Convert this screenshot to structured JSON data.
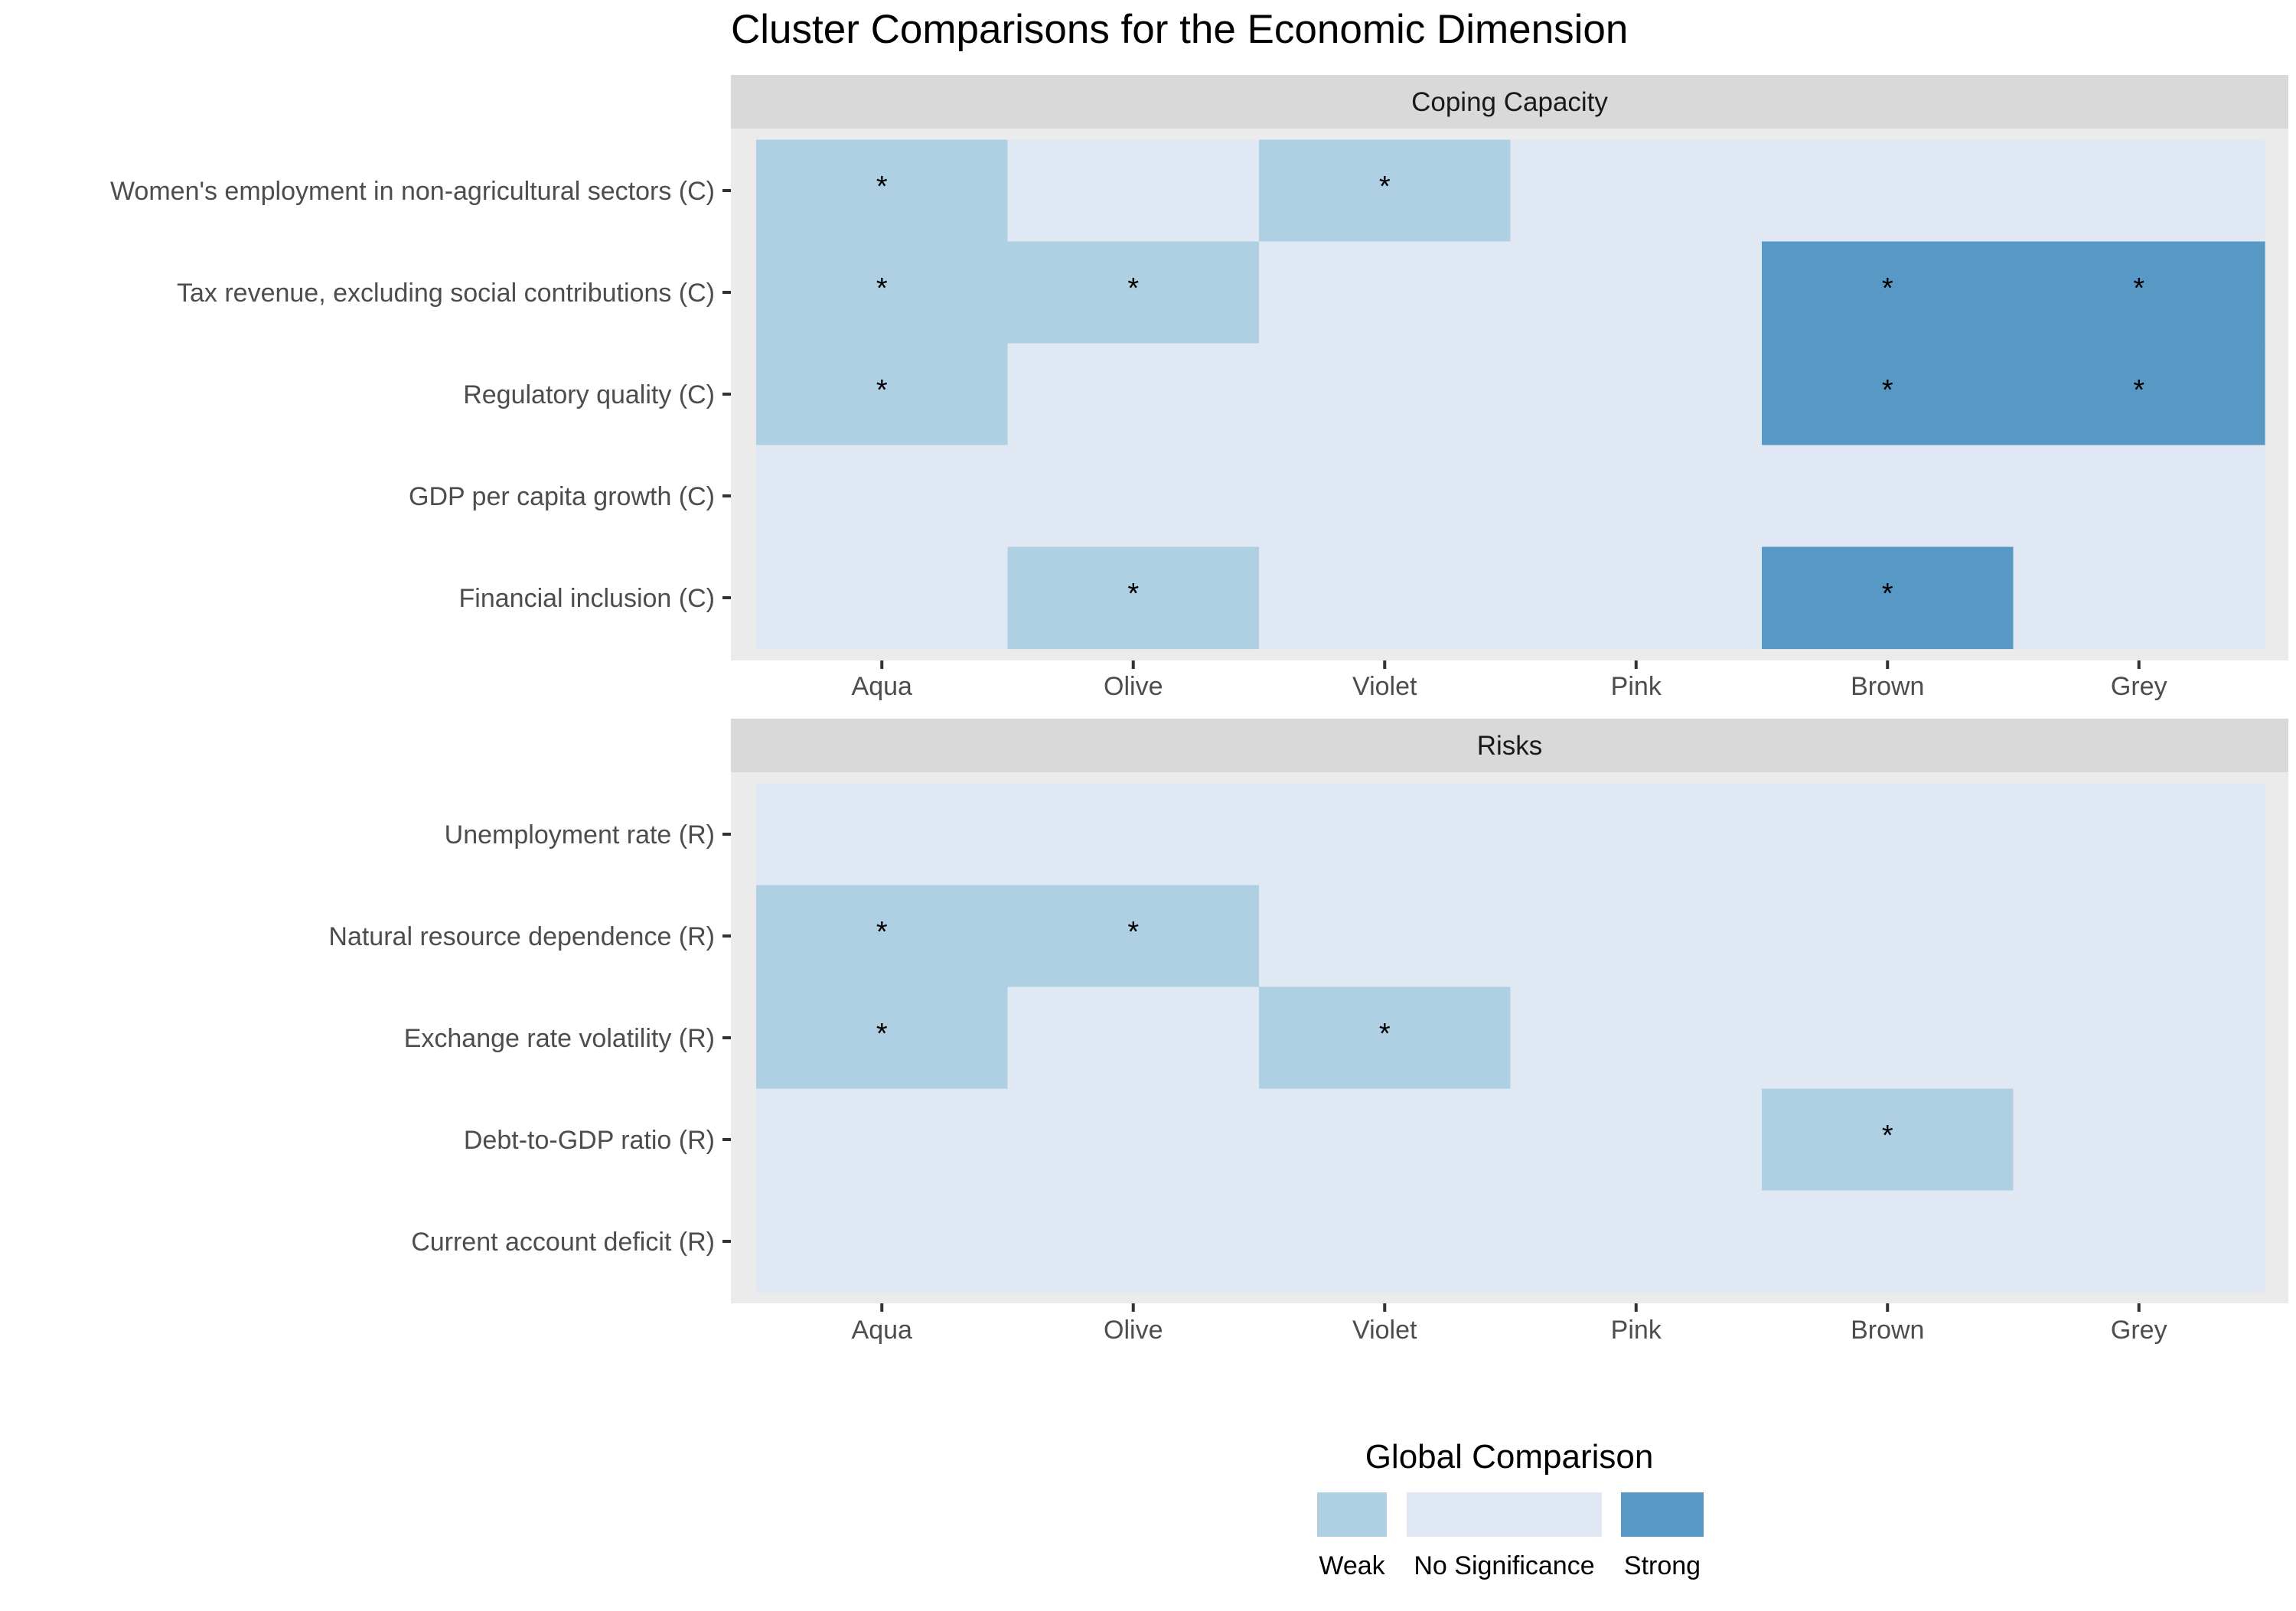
{
  "chart_data": {
    "type": "heatmap",
    "title": "Cluster Comparisons for the Economic Dimension",
    "categories": [
      "Aqua",
      "Olive",
      "Violet",
      "Pink",
      "Brown",
      "Grey"
    ],
    "level_colors": {
      "Weak": "#aed0e2",
      "No Significance": "#e0e9f3",
      "Strong": "#5898c5"
    },
    "panels": [
      {
        "name": "Coping Capacity",
        "rows": [
          {
            "label": "Women's employment in non-agricultural sectors (C)",
            "values": [
              "Weak",
              "No Significance",
              "Weak",
              "No Significance",
              "No Significance",
              "No Significance"
            ],
            "marks": [
              "*",
              "",
              "*",
              "",
              "",
              ""
            ]
          },
          {
            "label": "Tax revenue, excluding social contributions (C)",
            "values": [
              "Weak",
              "Weak",
              "No Significance",
              "No Significance",
              "Strong",
              "Strong"
            ],
            "marks": [
              "*",
              "*",
              "",
              "",
              "*",
              "*"
            ]
          },
          {
            "label": "Regulatory quality (C)",
            "values": [
              "Weak",
              "No Significance",
              "No Significance",
              "No Significance",
              "Strong",
              "Strong"
            ],
            "marks": [
              "*",
              "",
              "",
              "",
              "*",
              "*"
            ]
          },
          {
            "label": "GDP per capita growth (C)",
            "values": [
              "No Significance",
              "No Significance",
              "No Significance",
              "No Significance",
              "No Significance",
              "No Significance"
            ],
            "marks": [
              "",
              "",
              "",
              "",
              "",
              ""
            ]
          },
          {
            "label": "Financial inclusion (C)",
            "values": [
              "No Significance",
              "Weak",
              "No Significance",
              "No Significance",
              "Strong",
              "No Significance"
            ],
            "marks": [
              "",
              "*",
              "",
              "",
              "*",
              ""
            ]
          }
        ]
      },
      {
        "name": "Risks",
        "rows": [
          {
            "label": "Unemployment rate (R)",
            "values": [
              "No Significance",
              "No Significance",
              "No Significance",
              "No Significance",
              "No Significance",
              "No Significance"
            ],
            "marks": [
              "",
              "",
              "",
              "",
              "",
              ""
            ]
          },
          {
            "label": "Natural resource dependence (R)",
            "values": [
              "Weak",
              "Weak",
              "No Significance",
              "No Significance",
              "No Significance",
              "No Significance"
            ],
            "marks": [
              "*",
              "*",
              "",
              "",
              "",
              ""
            ]
          },
          {
            "label": "Exchange rate volatility (R)",
            "values": [
              "Weak",
              "No Significance",
              "Weak",
              "No Significance",
              "No Significance",
              "No Significance"
            ],
            "marks": [
              "*",
              "",
              "*",
              "",
              "",
              ""
            ]
          },
          {
            "label": "Debt-to-GDP ratio (R)",
            "values": [
              "No Significance",
              "No Significance",
              "No Significance",
              "No Significance",
              "Weak",
              "No Significance"
            ],
            "marks": [
              "",
              "",
              "",
              "",
              "*",
              ""
            ]
          },
          {
            "label": "Current account deficit (R)",
            "values": [
              "No Significance",
              "No Significance",
              "No Significance",
              "No Significance",
              "No Significance",
              "No Significance"
            ],
            "marks": [
              "",
              "",
              "",
              "",
              "",
              ""
            ]
          }
        ]
      }
    ],
    "legend": {
      "title": "Global Comparison",
      "placement": "bottom",
      "items": [
        "Weak",
        "No Significance",
        "Strong"
      ]
    }
  }
}
